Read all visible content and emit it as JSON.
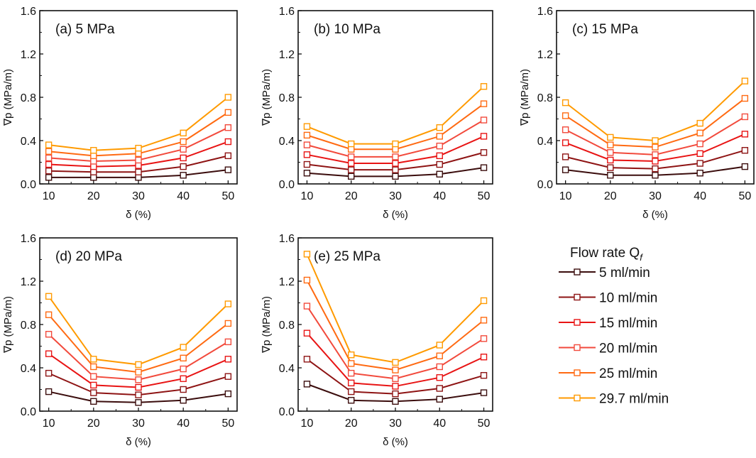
{
  "chart_data": {
    "type": "line",
    "legend": {
      "title": "Flow rate Q",
      "title_sub": "f",
      "placement": "bottom-right"
    },
    "series_meta": [
      {
        "name": "5 ml/min",
        "color": "#3b0d0d"
      },
      {
        "name": "10 ml/min",
        "color": "#8e1414"
      },
      {
        "name": "15 ml/min",
        "color": "#e81414"
      },
      {
        "name": "20 ml/min",
        "color": "#f24a3c"
      },
      {
        "name": "25 ml/min",
        "color": "#ff6a12"
      },
      {
        "name": "29.7 ml/min",
        "color": "#ff9a00"
      }
    ],
    "panels": [
      {
        "title": "(a) 5 MPa",
        "xlabel": "δ (%)",
        "ylabel": "∇p (MPa/m)",
        "x": [
          10,
          20,
          30,
          40,
          50
        ],
        "xlim": [
          8,
          52
        ],
        "ylim": [
          0,
          1.6
        ],
        "xticks": [
          "10",
          "20",
          "30",
          "40",
          "50"
        ],
        "yticks": [
          "0.0",
          "0.4",
          "0.8",
          "1.2",
          "1.6"
        ],
        "series": [
          {
            "name": "5 ml/min",
            "values": [
              0.06,
              0.06,
              0.06,
              0.08,
              0.13
            ]
          },
          {
            "name": "10 ml/min",
            "values": [
              0.12,
              0.11,
              0.11,
              0.16,
              0.26
            ]
          },
          {
            "name": "15 ml/min",
            "values": [
              0.18,
              0.16,
              0.17,
              0.24,
              0.39
            ]
          },
          {
            "name": "20 ml/min",
            "values": [
              0.24,
              0.21,
              0.22,
              0.32,
              0.52
            ]
          },
          {
            "name": "25 ml/min",
            "values": [
              0.3,
              0.26,
              0.28,
              0.39,
              0.66
            ]
          },
          {
            "name": "29.7 ml/min",
            "values": [
              0.36,
              0.31,
              0.33,
              0.47,
              0.8
            ]
          }
        ]
      },
      {
        "title": "(b) 10 MPa",
        "xlabel": "δ (%)",
        "ylabel": "∇p (MPa/m)",
        "x": [
          10,
          20,
          30,
          40,
          50
        ],
        "xlim": [
          8,
          52
        ],
        "ylim": [
          0,
          1.6
        ],
        "xticks": [
          "10",
          "20",
          "30",
          "40",
          "50"
        ],
        "yticks": [
          "0.0",
          "0.4",
          "0.8",
          "1.2",
          "1.6"
        ],
        "series": [
          {
            "name": "5 ml/min",
            "values": [
              0.1,
              0.07,
              0.07,
              0.09,
              0.15
            ]
          },
          {
            "name": "10 ml/min",
            "values": [
              0.18,
              0.13,
              0.13,
              0.18,
              0.29
            ]
          },
          {
            "name": "15 ml/min",
            "values": [
              0.27,
              0.19,
              0.19,
              0.26,
              0.44
            ]
          },
          {
            "name": "20 ml/min",
            "values": [
              0.36,
              0.25,
              0.25,
              0.35,
              0.59
            ]
          },
          {
            "name": "25 ml/min",
            "values": [
              0.45,
              0.32,
              0.32,
              0.44,
              0.74
            ]
          },
          {
            "name": "29.7 ml/min",
            "values": [
              0.53,
              0.37,
              0.37,
              0.52,
              0.9
            ]
          }
        ]
      },
      {
        "title": "(c) 15 MPa",
        "xlabel": "δ (%)",
        "ylabel": "∇p (MPa/m)",
        "x": [
          10,
          20,
          30,
          40,
          50
        ],
        "xlim": [
          8,
          52
        ],
        "ylim": [
          0,
          1.6
        ],
        "xticks": [
          "10",
          "20",
          "30",
          "40",
          "50"
        ],
        "yticks": [
          "0.0",
          "0.4",
          "0.8",
          "1.2",
          "1.6"
        ],
        "series": [
          {
            "name": "5 ml/min",
            "values": [
              0.13,
              0.08,
              0.08,
              0.1,
              0.16
            ]
          },
          {
            "name": "10 ml/min",
            "values": [
              0.25,
              0.15,
              0.14,
              0.19,
              0.31
            ]
          },
          {
            "name": "15 ml/min",
            "values": [
              0.38,
              0.22,
              0.21,
              0.28,
              0.46
            ]
          },
          {
            "name": "20 ml/min",
            "values": [
              0.5,
              0.29,
              0.27,
              0.37,
              0.62
            ]
          },
          {
            "name": "25 ml/min",
            "values": [
              0.63,
              0.36,
              0.34,
              0.47,
              0.79
            ]
          },
          {
            "name": "29.7 ml/min",
            "values": [
              0.75,
              0.43,
              0.4,
              0.56,
              0.95
            ]
          }
        ]
      },
      {
        "title": "(d) 20 MPa",
        "xlabel": "δ (%)",
        "ylabel": "∇p (MPa/m)",
        "x": [
          10,
          20,
          30,
          40,
          50
        ],
        "xlim": [
          8,
          52
        ],
        "ylim": [
          0,
          1.6
        ],
        "xticks": [
          "10",
          "20",
          "30",
          "40",
          "50"
        ],
        "yticks": [
          "0.0",
          "0.4",
          "0.8",
          "1.2",
          "1.6"
        ],
        "series": [
          {
            "name": "5 ml/min",
            "values": [
              0.18,
              0.09,
              0.08,
              0.1,
              0.16
            ]
          },
          {
            "name": "10 ml/min",
            "values": [
              0.35,
              0.17,
              0.15,
              0.2,
              0.32
            ]
          },
          {
            "name": "15 ml/min",
            "values": [
              0.53,
              0.24,
              0.22,
              0.3,
              0.48
            ]
          },
          {
            "name": "20 ml/min",
            "values": [
              0.71,
              0.32,
              0.29,
              0.39,
              0.64
            ]
          },
          {
            "name": "25 ml/min",
            "values": [
              0.89,
              0.41,
              0.36,
              0.49,
              0.81
            ]
          },
          {
            "name": "29.7 ml/min",
            "values": [
              1.06,
              0.48,
              0.43,
              0.59,
              0.99
            ]
          }
        ]
      },
      {
        "title": "(e) 25 MPa",
        "xlabel": "δ (%)",
        "ylabel": "∇p (MPa/m)",
        "x": [
          10,
          20,
          30,
          40,
          50
        ],
        "xlim": [
          8,
          52
        ],
        "ylim": [
          0,
          1.6
        ],
        "xticks": [
          "10",
          "20",
          "30",
          "40",
          "50"
        ],
        "yticks": [
          "0.0",
          "0.4",
          "0.8",
          "1.2",
          "1.6"
        ],
        "series": [
          {
            "name": "5 ml/min",
            "values": [
              0.25,
              0.1,
              0.09,
              0.11,
              0.17
            ]
          },
          {
            "name": "10 ml/min",
            "values": [
              0.48,
              0.18,
              0.16,
              0.21,
              0.33
            ]
          },
          {
            "name": "15 ml/min",
            "values": [
              0.72,
              0.26,
              0.23,
              0.31,
              0.5
            ]
          },
          {
            "name": "20 ml/min",
            "values": [
              0.97,
              0.35,
              0.3,
              0.41,
              0.67
            ]
          },
          {
            "name": "25 ml/min",
            "values": [
              1.21,
              0.44,
              0.38,
              0.51,
              0.84
            ]
          },
          {
            "name": "29.7 ml/min",
            "values": [
              1.45,
              0.52,
              0.45,
              0.61,
              1.02
            ]
          }
        ]
      }
    ]
  }
}
